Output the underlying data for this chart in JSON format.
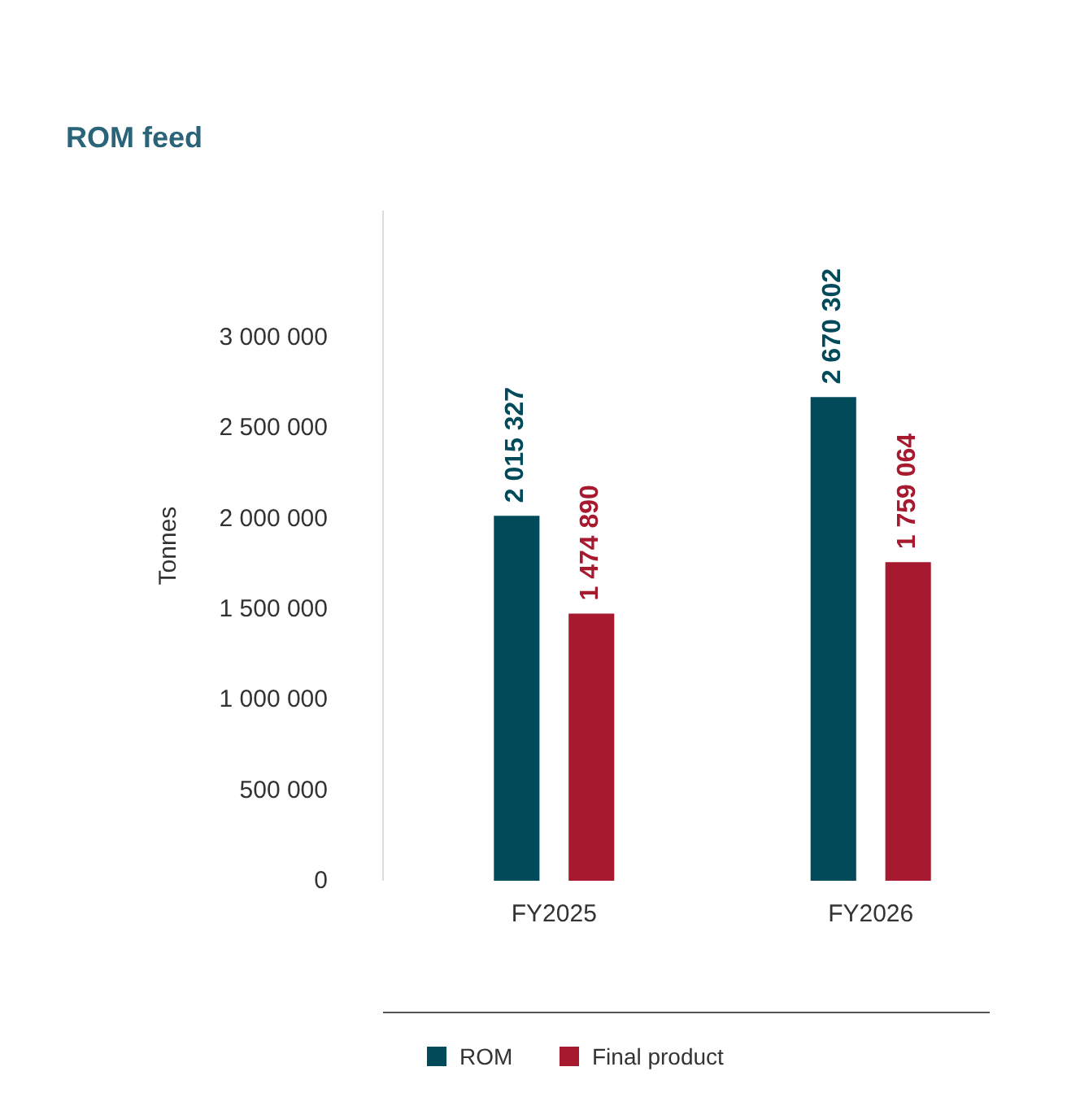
{
  "chart_data": {
    "type": "bar",
    "title": "ROM feed",
    "ylabel": "Tonnes",
    "categories": [
      "FY2025",
      "FY2026"
    ],
    "series": [
      {
        "name": "ROM",
        "color": "#004a5a",
        "values": [
          2015327,
          2670302
        ],
        "value_labels": [
          "2 015 327",
          "2 670 302"
        ]
      },
      {
        "name": "Final product",
        "color": "#a6192e",
        "values": [
          1474890,
          1759064
        ],
        "value_labels": [
          "1 474 890",
          "1 759 064"
        ]
      }
    ],
    "ylim": [
      0,
      3700000
    ],
    "yticks": [
      {
        "value": 0,
        "label": "0"
      },
      {
        "value": 500000,
        "label": "500 000"
      },
      {
        "value": 1000000,
        "label": "1 000 000"
      },
      {
        "value": 1500000,
        "label": "1 500 000"
      },
      {
        "value": 2000000,
        "label": "2 000 000"
      },
      {
        "value": 2500000,
        "label": "2 500 000"
      },
      {
        "value": 3000000,
        "label": "3 000 000"
      }
    ],
    "grid": false,
    "legend": "bottom"
  }
}
